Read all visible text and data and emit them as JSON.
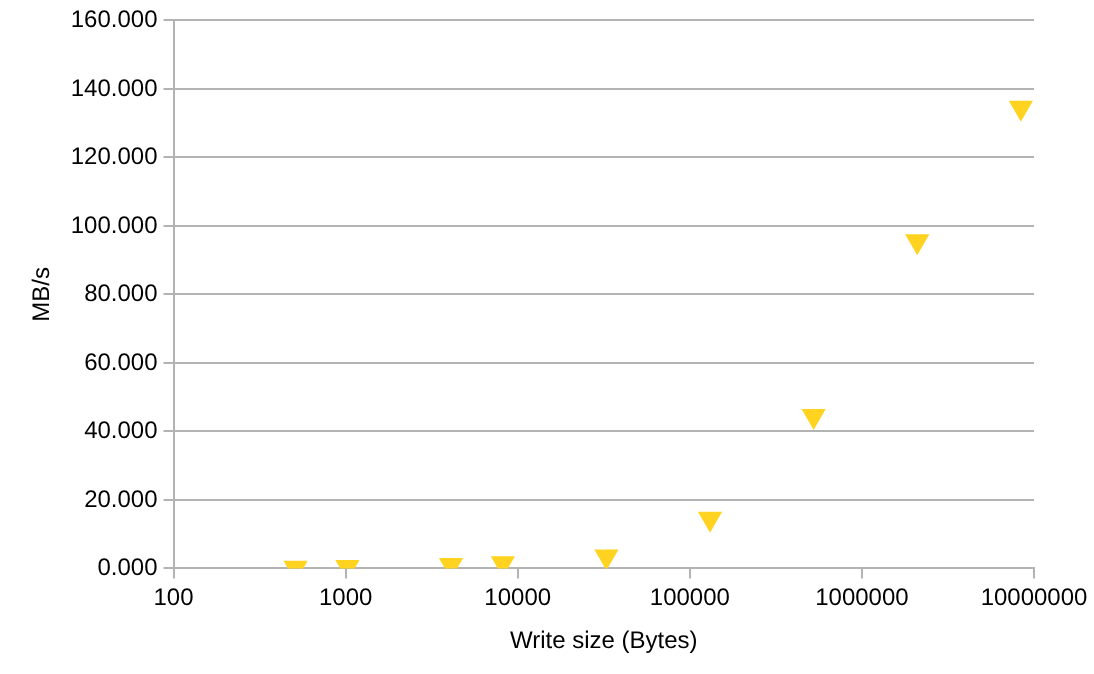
{
  "chart_data": {
    "type": "scatter",
    "xlabel": "Write size (Bytes)",
    "ylabel": "MB/s",
    "x": [
      512,
      1024,
      4096,
      8192,
      32768,
      131072,
      524288,
      2097152,
      8388608
    ],
    "series": [
      {
        "color": "#ffd320",
        "values": [
          0.2,
          0.4,
          1.0,
          1.5,
          3.5,
          14.5,
          44.5,
          95.5,
          134.5
        ]
      }
    ],
    "log": "x",
    "xlim": [
      100,
      10000000
    ],
    "xticks": [
      100,
      1000,
      10000,
      100000,
      1000000,
      10000000
    ],
    "ylim": [
      0,
      160
    ],
    "yticks": [
      {
        "value": 0,
        "label": "0.000"
      },
      {
        "value": 20,
        "label": "20.000"
      },
      {
        "value": 40,
        "label": "40.000"
      },
      {
        "value": 60,
        "label": "60.000"
      },
      {
        "value": 80,
        "label": "80.000"
      },
      {
        "value": 100,
        "label": "100.000"
      },
      {
        "value": 120,
        "label": "120.000"
      },
      {
        "value": 140,
        "label": "140.000"
      },
      {
        "value": 160,
        "label": "160.000"
      }
    ],
    "grid": "y",
    "marker": "triangle"
  }
}
